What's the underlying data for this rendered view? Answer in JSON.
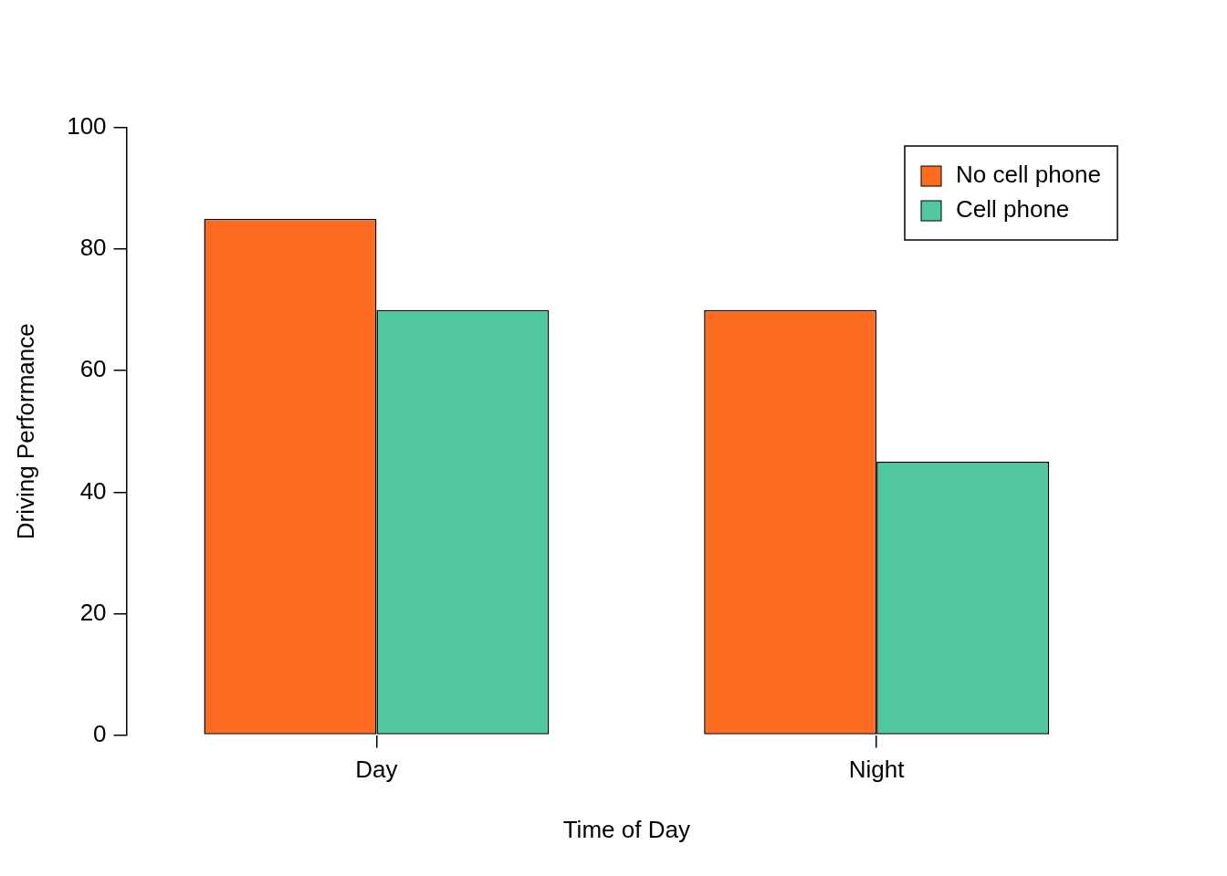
{
  "chart_data": {
    "type": "bar",
    "categories": [
      "Day",
      "Night"
    ],
    "series": [
      {
        "name": "No cell phone",
        "color": "#fc6b1f",
        "values": [
          85,
          70
        ]
      },
      {
        "name": "Cell phone",
        "color": "#50c7a0",
        "values": [
          70,
          45
        ]
      }
    ],
    "x_label": "Time of Day",
    "y_label": "Driving Performance",
    "ylim": [
      0,
      100
    ],
    "yticks": [
      0,
      20,
      40,
      60,
      80,
      100
    ],
    "grid": false,
    "legend": "top-right"
  }
}
